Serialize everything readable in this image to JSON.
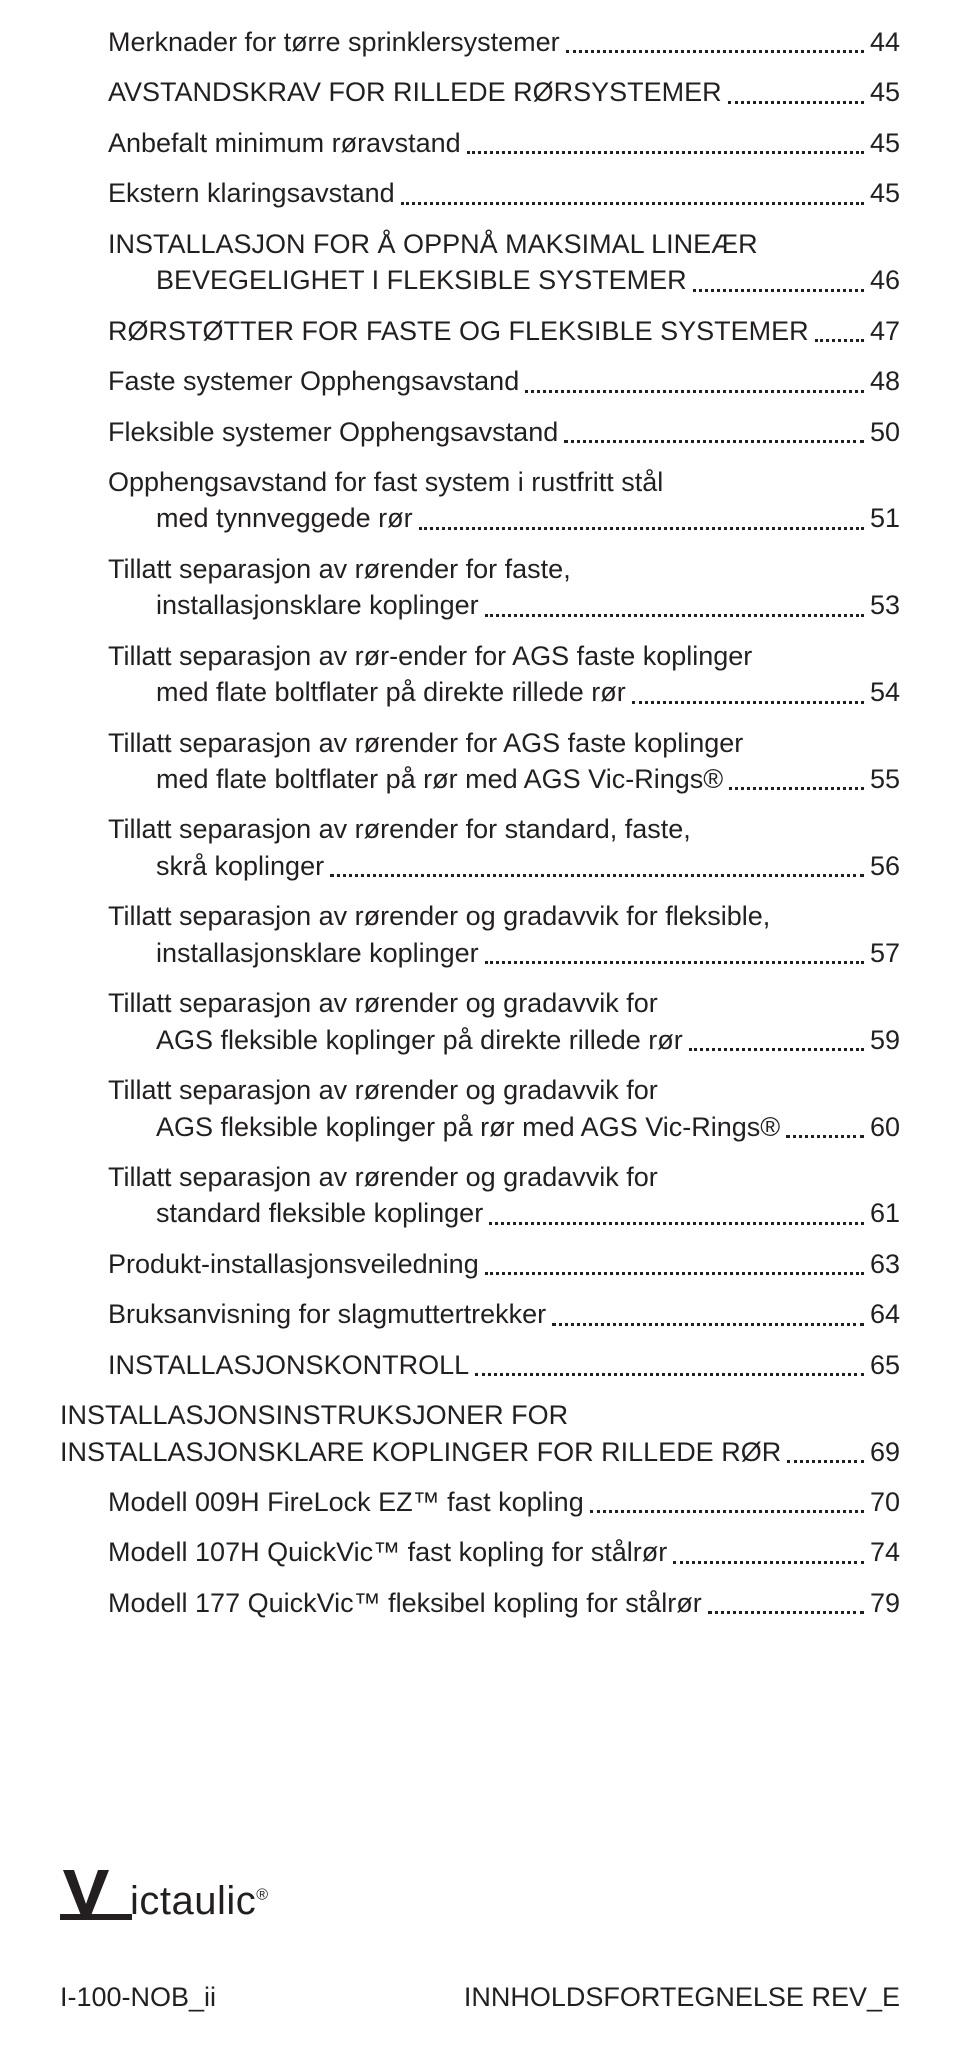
{
  "toc": [
    {
      "level": 1,
      "lines": [
        "Merknader for tørre sprinklersystemer"
      ],
      "page": "44"
    },
    {
      "level": 1,
      "lines": [
        "AVSTANDSKRAV FOR RILLEDE RØRSYSTEMER"
      ],
      "page": "45"
    },
    {
      "level": 2,
      "lines": [
        "Anbefalt minimum røravstand"
      ],
      "page": "45"
    },
    {
      "level": 2,
      "lines": [
        "Ekstern klaringsavstand"
      ],
      "page": "45"
    },
    {
      "level": 1,
      "lines": [
        "INSTALLASJON FOR Å OPPNÅ MAKSIMAL LINEÆR",
        "BEVEGELIGHET I FLEKSIBLE SYSTEMER"
      ],
      "page": "46"
    },
    {
      "level": 1,
      "lines": [
        "RØRSTØTTER FOR FASTE OG FLEKSIBLE SYSTEMER"
      ],
      "page": "47"
    },
    {
      "level": 1,
      "lines": [
        "Faste systemer Opphengsavstand"
      ],
      "page": "48"
    },
    {
      "level": 1,
      "lines": [
        "Fleksible systemer Opphengsavstand"
      ],
      "page": "50"
    },
    {
      "level": 1,
      "lines": [
        "Opphengsavstand for fast system i rustfritt stål",
        "med tynnveggede rør"
      ],
      "page": "51"
    },
    {
      "level": 1,
      "lines": [
        "Tillatt separasjon av rørender for faste,",
        "installasjonsklare koplinger"
      ],
      "page": "53"
    },
    {
      "level": 1,
      "lines": [
        "Tillatt separasjon av rør-ender for AGS faste koplinger",
        "med flate boltflater på direkte rillede rør"
      ],
      "page": "54"
    },
    {
      "level": 1,
      "lines": [
        "Tillatt separasjon av rørender for AGS faste koplinger",
        "med flate boltflater på rør med AGS Vic-Rings®"
      ],
      "page": "55"
    },
    {
      "level": 1,
      "lines": [
        "Tillatt separasjon av rørender for standard, faste,",
        "skrå koplinger"
      ],
      "page": "56"
    },
    {
      "level": 1,
      "lines": [
        "Tillatt separasjon av rørender og gradavvik for fleksible,",
        "installasjonsklare koplinger"
      ],
      "page": "57"
    },
    {
      "level": 1,
      "lines": [
        "Tillatt separasjon av rørender og gradavvik for",
        "AGS fleksible koplinger på direkte rillede rør"
      ],
      "page": "59"
    },
    {
      "level": 1,
      "lines": [
        "Tillatt separasjon av rørender og gradavvik for",
        "AGS fleksible koplinger på rør med AGS Vic-Rings®"
      ],
      "page": "60"
    },
    {
      "level": 1,
      "lines": [
        "Tillatt separasjon av rørender og gradavvik for",
        "standard fleksible koplinger"
      ],
      "page": "61"
    },
    {
      "level": 1,
      "lines": [
        "Produkt-installasjonsveiledning"
      ],
      "page": "63"
    },
    {
      "level": 1,
      "lines": [
        "Bruksanvisning for slagmuttertrekker"
      ],
      "page": "64"
    },
    {
      "level": 1,
      "lines": [
        "INSTALLASJONSKONTROLL"
      ],
      "page": "65"
    },
    {
      "level": 0,
      "lines": [
        "INSTALLASJONSINSTRUKSJONER FOR",
        "INSTALLASJONSKLARE KOPLINGER FOR RILLEDE RØR"
      ],
      "page": "69"
    },
    {
      "level": 1,
      "lines": [
        "Modell 009H FireLock EZ™ fast kopling"
      ],
      "page": "70"
    },
    {
      "level": 1,
      "lines": [
        "Modell 107H QuickVic™ fast kopling for stålrør"
      ],
      "page": "74"
    },
    {
      "level": 1,
      "lines": [
        "Modell 177 QuickVic™ fleksibel kopling for stålrør"
      ],
      "page": "79"
    }
  ],
  "logo": {
    "mark_color": "#231f20",
    "text": "ictaulic",
    "reg": "®"
  },
  "footer": {
    "left": "I-100-NOB_ii",
    "right": "INNHOLDSFORTEGNELSE REV_E"
  }
}
